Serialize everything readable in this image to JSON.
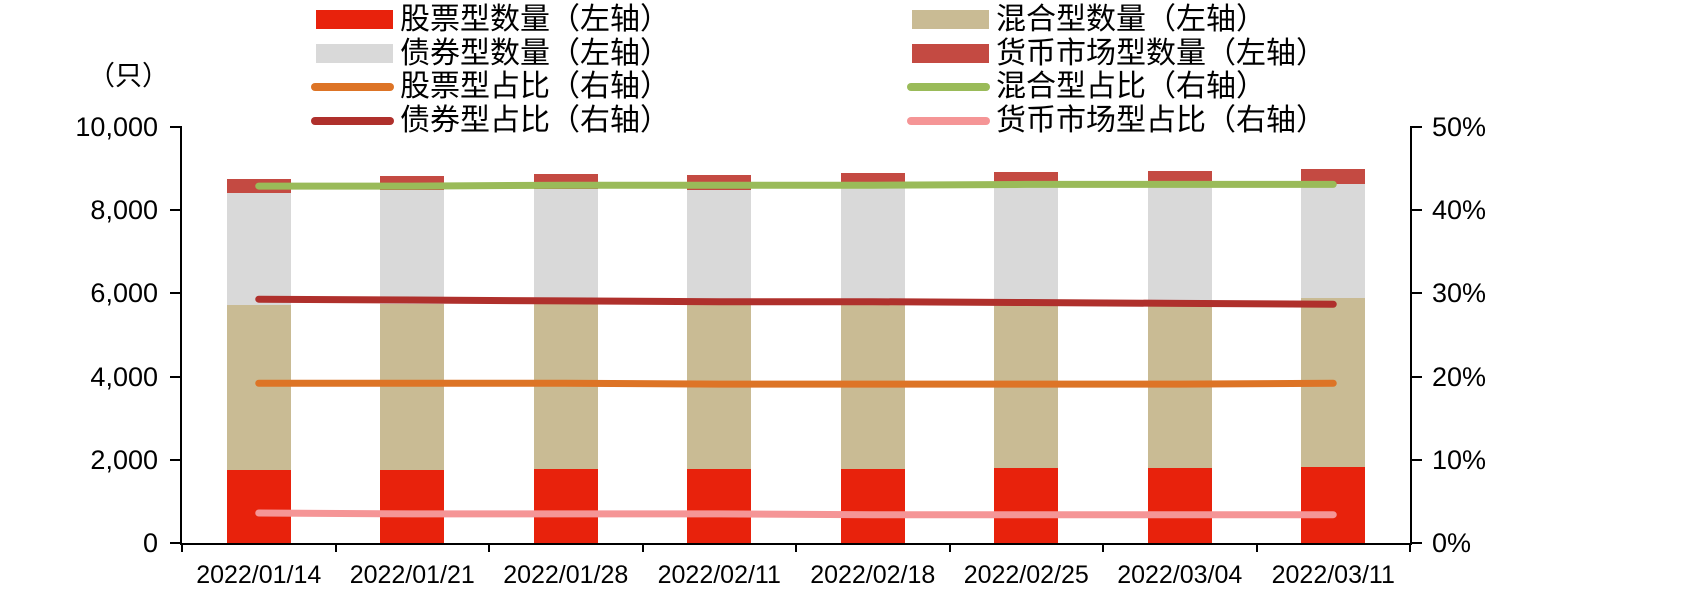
{
  "legend": {
    "columns": [
      {
        "items": [
          {
            "swatch": "bar",
            "color": "#e8220c",
            "label": "股票型数量（左轴）"
          },
          {
            "swatch": "bar",
            "color": "#d9d9d9",
            "label": "债券型数量（左轴）"
          },
          {
            "swatch": "line",
            "color": "#dd7426",
            "label": "股票型占比（右轴）"
          },
          {
            "swatch": "line",
            "color": "#af302c",
            "label": "债券型占比（右轴）"
          }
        ]
      },
      {
        "items": [
          {
            "swatch": "bar",
            "color": "#c9bb94",
            "label": "混合型数量（左轴）"
          },
          {
            "swatch": "bar",
            "color": "#c44a42",
            "label": "货币市场型数量（左轴）"
          },
          {
            "swatch": "line",
            "color": "#9abb59",
            "label": "混合型占比（右轴）"
          },
          {
            "swatch": "line",
            "color": "#f59596",
            "label": "货币市场型占比（右轴）"
          }
        ]
      }
    ]
  },
  "chart_data": {
    "type": "bar",
    "subtype": "stacked bars (left axis) + lines (right axis), dual axis",
    "stacked": true,
    "grid": false,
    "legend_position": "top",
    "categories": [
      "2022/01/14",
      "2022/01/21",
      "2022/01/28",
      "2022/02/11",
      "2022/02/18",
      "2022/02/25",
      "2022/03/04",
      "2022/03/11"
    ],
    "bar_series": [
      {
        "name": "股票型数量（左轴）",
        "axis": "left",
        "color": "#e8220c",
        "values": [
          1760,
          1765,
          1770,
          1775,
          1785,
          1795,
          1805,
          1830
        ]
      },
      {
        "name": "混合型数量（左轴）",
        "axis": "left",
        "color": "#c9bb94",
        "values": [
          3950,
          3970,
          3985,
          3980,
          3995,
          4010,
          4025,
          4050
        ]
      },
      {
        "name": "债券型数量（左轴）",
        "axis": "left",
        "color": "#d9d9d9",
        "values": [
          2700,
          2740,
          2765,
          2742,
          2758,
          2757,
          2754,
          2747
        ]
      },
      {
        "name": "货币市场型数量（左轴）",
        "axis": "left",
        "color": "#c44a42",
        "values": [
          337,
          344,
          347,
          346,
          354,
          354,
          356,
          361
        ]
      }
    ],
    "line_series": [
      {
        "name": "股票型占比（右轴）",
        "axis": "right",
        "color": "#dd7426",
        "values_pct": [
          19.2,
          19.2,
          19.2,
          19.1,
          19.1,
          19.1,
          19.1,
          19.2
        ]
      },
      {
        "name": "混合型占比（右轴）",
        "axis": "right",
        "color": "#9abb59",
        "values_pct": [
          42.9,
          42.9,
          43.0,
          43.0,
          43.0,
          43.1,
          43.1,
          43.1
        ]
      },
      {
        "name": "债券型占比（右轴）",
        "axis": "right",
        "color": "#af302c",
        "values_pct": [
          29.3,
          29.2,
          29.1,
          29.0,
          29.0,
          28.9,
          28.8,
          28.7
        ]
      },
      {
        "name": "货币市场型占比（右轴）",
        "axis": "right",
        "color": "#f59596",
        "values_pct": [
          3.6,
          3.5,
          3.5,
          3.5,
          3.4,
          3.4,
          3.4,
          3.4
        ]
      }
    ],
    "left_axis": {
      "unit": "（只）",
      "min": 0,
      "max": 10000,
      "ticks": [
        "10,000",
        "8,000",
        "6,000",
        "4,000",
        "2,000",
        "0"
      ]
    },
    "right_axis": {
      "min": 0,
      "max": 50,
      "ticks": [
        "50%",
        "40%",
        "30%",
        "20%",
        "10%",
        "0%"
      ]
    }
  }
}
